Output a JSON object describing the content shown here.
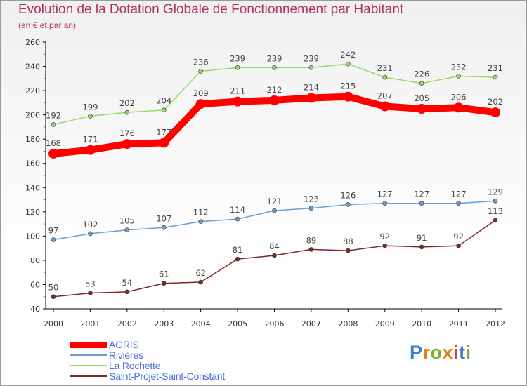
{
  "title": "Evolution de la Dotation Globale de Fonctionnement par Habitant",
  "subtitle": "(en € et par an)",
  "brand": "Proxiti",
  "chart_data": {
    "type": "line",
    "x": [
      "2000",
      "2001",
      "2002",
      "2003",
      "2004",
      "2005",
      "2006",
      "2007",
      "2008",
      "2009",
      "2010",
      "2011",
      "2012"
    ],
    "ylim": [
      40,
      260
    ],
    "yticks": [
      40,
      60,
      80,
      100,
      120,
      140,
      160,
      180,
      200,
      220,
      240,
      260
    ],
    "grid": false,
    "legend_position": "bottom-left",
    "series": [
      {
        "name": "AGRIS",
        "color": "#ff0000",
        "values": [
          168,
          171,
          176,
          177,
          209,
          211,
          212,
          214,
          215,
          207,
          205,
          206,
          202
        ]
      },
      {
        "name": "Rivières",
        "color": "#6a9fd0",
        "values": [
          97,
          102,
          105,
          107,
          112,
          114,
          121,
          123,
          126,
          127,
          127,
          127,
          129
        ]
      },
      {
        "name": "La Rochette",
        "color": "#9bd56f",
        "values": [
          192,
          199,
          202,
          204,
          236,
          239,
          239,
          239,
          242,
          231,
          226,
          232,
          231
        ]
      },
      {
        "name": "Saint-Projet-Saint-Constant",
        "color": "#7a2a2a",
        "values": [
          50,
          53,
          54,
          61,
          62,
          81,
          84,
          89,
          88,
          92,
          91,
          92,
          113
        ]
      }
    ]
  }
}
